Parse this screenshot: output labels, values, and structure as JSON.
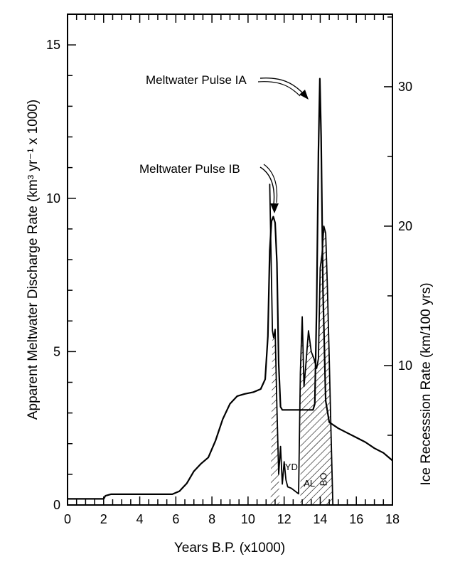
{
  "chart_data": {
    "type": "line",
    "title": "",
    "xlabel": "Years  B.P.  (x1000)",
    "ylabel": "Apparent  Meltwater  Discharge  Rate   (km³ yr⁻¹ x 1000)",
    "ylabel_right": "Ice Recesssion  Rate   (km/100 yrs)",
    "xlim": [
      0,
      18
    ],
    "ylim": [
      0,
      16
    ],
    "ylim_right": [
      0,
      35.2
    ],
    "x_ticks": [
      0,
      2,
      4,
      6,
      8,
      10,
      12,
      14,
      16,
      18
    ],
    "y_ticks": [
      0,
      5,
      10,
      15
    ],
    "y_right_ticks": [
      10,
      20,
      30
    ],
    "series": [
      {
        "values": [
          [
            0,
            0.2
          ],
          [
            2.0,
            0.2
          ],
          [
            2.1,
            0.3
          ],
          [
            2.4,
            0.35
          ],
          [
            5.8,
            0.35
          ],
          [
            6.2,
            0.45
          ],
          [
            6.6,
            0.7
          ],
          [
            7.0,
            1.1
          ],
          [
            7.4,
            1.35
          ],
          [
            7.8,
            1.55
          ],
          [
            8.2,
            2.1
          ],
          [
            8.6,
            2.8
          ],
          [
            9.0,
            3.3
          ],
          [
            9.4,
            3.55
          ],
          [
            9.8,
            3.62
          ],
          [
            10.3,
            3.68
          ],
          [
            10.7,
            3.78
          ],
          [
            10.95,
            4.1
          ],
          [
            11.1,
            5.5
          ],
          [
            11.2,
            8.3
          ],
          [
            11.3,
            9.25
          ],
          [
            11.4,
            9.4
          ],
          [
            11.5,
            9.2
          ],
          [
            11.6,
            7.9
          ],
          [
            11.7,
            4.6
          ],
          [
            11.8,
            3.2
          ],
          [
            11.9,
            3.1
          ],
          [
            13.6,
            3.1
          ],
          [
            13.7,
            3.3
          ],
          [
            13.8,
            6.5
          ],
          [
            13.9,
            11.5
          ],
          [
            13.98,
            13.9
          ],
          [
            14.05,
            12.0
          ],
          [
            14.15,
            7.0
          ],
          [
            14.3,
            3.4
          ],
          [
            14.5,
            2.7
          ],
          [
            15.0,
            2.5
          ],
          [
            15.5,
            2.35
          ],
          [
            16.0,
            2.2
          ],
          [
            16.5,
            2.05
          ],
          [
            17.0,
            1.85
          ],
          [
            17.5,
            1.7
          ],
          [
            18.0,
            1.45
          ]
        ]
      },
      {
        "axis": "right",
        "values": [
          [
            11.2,
            23.0
          ],
          [
            11.35,
            12.5
          ],
          [
            11.42,
            12.0
          ],
          [
            11.5,
            12.6
          ],
          [
            11.6,
            7.0
          ],
          [
            11.7,
            2.2
          ],
          [
            11.8,
            4.2
          ],
          [
            11.9,
            1.5
          ],
          [
            12.0,
            3.1
          ],
          [
            12.1,
            1.8
          ],
          [
            12.2,
            1.3
          ],
          [
            12.4,
            1.2
          ],
          [
            12.6,
            1.0
          ],
          [
            12.8,
            0.8
          ],
          [
            12.9,
            9.5
          ],
          [
            13.0,
            13.5
          ],
          [
            13.1,
            8.5
          ],
          [
            13.2,
            10.0
          ],
          [
            13.35,
            12.5
          ],
          [
            13.5,
            11.0
          ],
          [
            13.65,
            10.5
          ],
          [
            13.8,
            9.8
          ],
          [
            13.9,
            10.5
          ],
          [
            14.0,
            17.0
          ],
          [
            14.1,
            18.0
          ],
          [
            14.2,
            20.0
          ],
          [
            14.3,
            19.5
          ],
          [
            14.4,
            15.5
          ],
          [
            14.5,
            10.5
          ],
          [
            14.6,
            5.0
          ],
          [
            14.7,
            0.0
          ]
        ]
      }
    ],
    "annotations": [
      {
        "text": "Meltwater Pulse IA",
        "x": 14.0,
        "y": 13.9
      },
      {
        "text": "Meltwater Pulse IB",
        "x": 11.4,
        "y": 9.4
      },
      {
        "text": "YD",
        "x": 12.4
      },
      {
        "text": "AL",
        "x": 13.4
      },
      {
        "text": "BO",
        "x": 14.2
      }
    ],
    "hatched_regions": [
      [
        11.25,
        11.75
      ],
      [
        12.9,
        14.7
      ]
    ],
    "grid": false
  }
}
